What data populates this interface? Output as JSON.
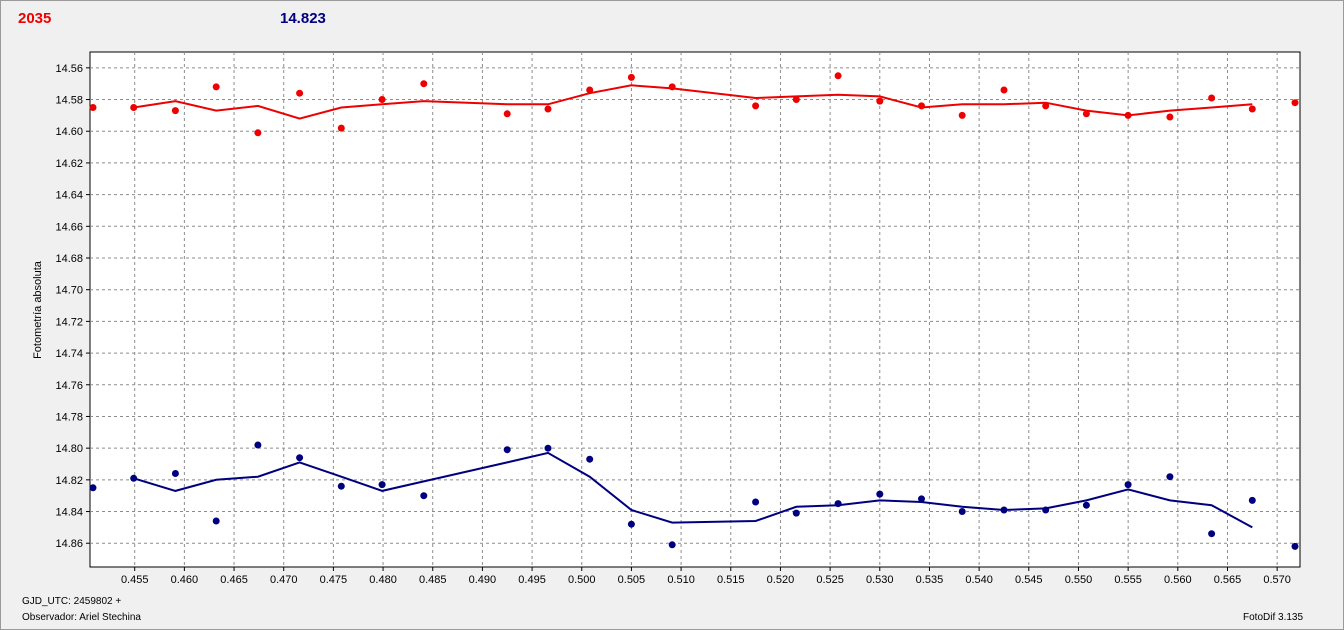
{
  "header": {
    "red_label": "2035",
    "blue_label": "14.823",
    "red_color": "#ee0000",
    "blue_color": "#00007f"
  },
  "footer": {
    "gjd": "GJD_UTC: 2459802 +",
    "observer": "Observador: Ariel Stechina",
    "version": "FotoDif 3.135"
  },
  "chart_data": {
    "type": "scatter",
    "ylabel": "Fotometría absoluta",
    "xlabel": "",
    "xlim": [
      0.4505,
      0.5723
    ],
    "ylim": [
      14.55,
      14.875
    ],
    "y_inverted": true,
    "grid": true,
    "x_ticks": [
      "0.455",
      "0.460",
      "0.465",
      "0.470",
      "0.475",
      "0.480",
      "0.485",
      "0.490",
      "0.495",
      "0.500",
      "0.505",
      "0.510",
      "0.515",
      "0.520",
      "0.525",
      "0.530",
      "0.535",
      "0.540",
      "0.545",
      "0.550",
      "0.555",
      "0.560",
      "0.565",
      "0.570"
    ],
    "y_ticks": [
      "14.56",
      "14.58",
      "14.60",
      "14.62",
      "14.64",
      "14.66",
      "14.68",
      "14.70",
      "14.72",
      "14.74",
      "14.76",
      "14.78",
      "14.80",
      "14.82",
      "14.84",
      "14.86"
    ],
    "series": [
      {
        "color": "#ee0000",
        "points": [
          [
            0.4508,
            14.585
          ],
          [
            0.4549,
            14.585
          ],
          [
            0.4591,
            14.587
          ],
          [
            0.4632,
            14.572
          ],
          [
            0.4674,
            14.601
          ],
          [
            0.4716,
            14.576
          ],
          [
            0.4758,
            14.598
          ],
          [
            0.4799,
            14.58
          ],
          [
            0.4841,
            14.57
          ],
          [
            0.4925,
            14.589
          ],
          [
            0.4966,
            14.586
          ],
          [
            0.5008,
            14.574
          ],
          [
            0.505,
            14.566
          ],
          [
            0.5091,
            14.572
          ],
          [
            0.5175,
            14.584
          ],
          [
            0.5216,
            14.58
          ],
          [
            0.5258,
            14.565
          ],
          [
            0.53,
            14.581
          ],
          [
            0.5342,
            14.584
          ],
          [
            0.5383,
            14.59
          ],
          [
            0.5425,
            14.574
          ],
          [
            0.5467,
            14.584
          ],
          [
            0.5508,
            14.589
          ],
          [
            0.555,
            14.59
          ],
          [
            0.5592,
            14.591
          ],
          [
            0.5634,
            14.579
          ],
          [
            0.5675,
            14.586
          ],
          [
            0.5718,
            14.582
          ]
        ],
        "line": [
          [
            0.4549,
            14.585
          ],
          [
            0.4591,
            14.581
          ],
          [
            0.4632,
            14.587
          ],
          [
            0.4674,
            14.584
          ],
          [
            0.4716,
            14.592
          ],
          [
            0.4758,
            14.585
          ],
          [
            0.4799,
            14.583
          ],
          [
            0.4841,
            14.581
          ],
          [
            0.4925,
            14.583
          ],
          [
            0.4966,
            14.583
          ],
          [
            0.5008,
            14.576
          ],
          [
            0.505,
            14.571
          ],
          [
            0.5091,
            14.573
          ],
          [
            0.5175,
            14.579
          ],
          [
            0.5216,
            14.578
          ],
          [
            0.5258,
            14.577
          ],
          [
            0.53,
            14.578
          ],
          [
            0.5342,
            14.585
          ],
          [
            0.5383,
            14.583
          ],
          [
            0.5425,
            14.583
          ],
          [
            0.5467,
            14.582
          ],
          [
            0.5508,
            14.587
          ],
          [
            0.555,
            14.59
          ],
          [
            0.5592,
            14.587
          ],
          [
            0.5634,
            14.585
          ],
          [
            0.5675,
            14.583
          ]
        ]
      },
      {
        "color": "#00007f",
        "points": [
          [
            0.4508,
            14.825
          ],
          [
            0.4549,
            14.819
          ],
          [
            0.4591,
            14.816
          ],
          [
            0.4632,
            14.846
          ],
          [
            0.4674,
            14.798
          ],
          [
            0.4716,
            14.806
          ],
          [
            0.4758,
            14.824
          ],
          [
            0.4799,
            14.823
          ],
          [
            0.4841,
            14.83
          ],
          [
            0.4925,
            14.801
          ],
          [
            0.4966,
            14.8
          ],
          [
            0.5008,
            14.807
          ],
          [
            0.505,
            14.848
          ],
          [
            0.5091,
            14.861
          ],
          [
            0.5175,
            14.834
          ],
          [
            0.5216,
            14.841
          ],
          [
            0.5258,
            14.835
          ],
          [
            0.53,
            14.829
          ],
          [
            0.5342,
            14.832
          ],
          [
            0.5383,
            14.84
          ],
          [
            0.5425,
            14.839
          ],
          [
            0.5467,
            14.839
          ],
          [
            0.5508,
            14.836
          ],
          [
            0.555,
            14.823
          ],
          [
            0.5592,
            14.818
          ],
          [
            0.5634,
            14.854
          ],
          [
            0.5675,
            14.833
          ],
          [
            0.5718,
            14.862
          ]
        ],
        "line": [
          [
            0.4549,
            14.819
          ],
          [
            0.4591,
            14.827
          ],
          [
            0.4632,
            14.82
          ],
          [
            0.4674,
            14.818
          ],
          [
            0.4716,
            14.809
          ],
          [
            0.4758,
            14.818
          ],
          [
            0.4799,
            14.827
          ],
          [
            0.4841,
            14.821
          ],
          [
            0.4925,
            14.809
          ],
          [
            0.4966,
            14.803
          ],
          [
            0.5008,
            14.818
          ],
          [
            0.505,
            14.839
          ],
          [
            0.5091,
            14.847
          ],
          [
            0.5175,
            14.846
          ],
          [
            0.5216,
            14.837
          ],
          [
            0.5258,
            14.836
          ],
          [
            0.53,
            14.833
          ],
          [
            0.5342,
            14.834
          ],
          [
            0.5383,
            14.837
          ],
          [
            0.5425,
            14.839
          ],
          [
            0.5467,
            14.838
          ],
          [
            0.5508,
            14.833
          ],
          [
            0.555,
            14.826
          ],
          [
            0.5592,
            14.833
          ],
          [
            0.5634,
            14.836
          ],
          [
            0.5675,
            14.85
          ]
        ]
      }
    ]
  }
}
